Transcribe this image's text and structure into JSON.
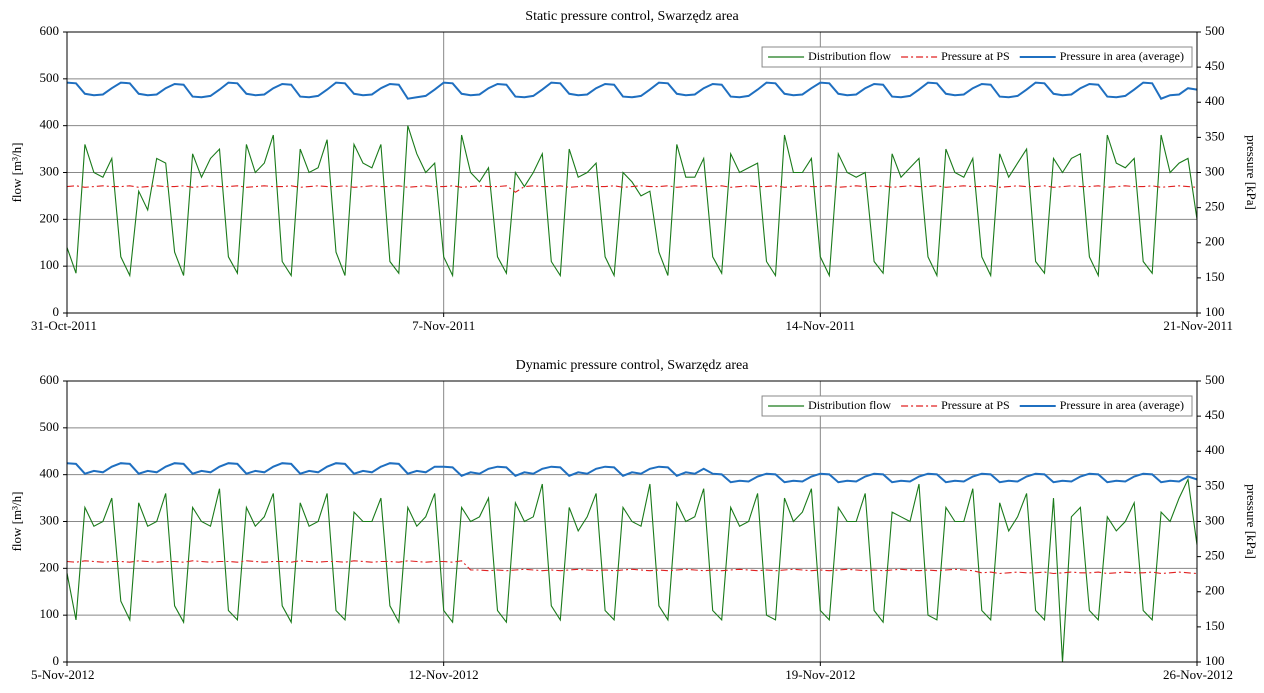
{
  "chart_data": [
    {
      "type": "line",
      "title": "Static pressure control, Swarzędz area",
      "y_label": "flow [m³/h]",
      "y2_label": "pressure [kPa]",
      "x": [
        0,
        4,
        8,
        12,
        16,
        20,
        24,
        28,
        32,
        36,
        40,
        44,
        48,
        52,
        56,
        60,
        64,
        68,
        72,
        76,
        80,
        84,
        88,
        92,
        96,
        100,
        104,
        108,
        112,
        116,
        120,
        124,
        128,
        132,
        136,
        140,
        144,
        148,
        152,
        156,
        160,
        164,
        168,
        172,
        176,
        180,
        184,
        188,
        192,
        196,
        200,
        204,
        208,
        212,
        216,
        220,
        224,
        228,
        232,
        236,
        240,
        244,
        248,
        252,
        256,
        260,
        264,
        268,
        272,
        276,
        280,
        284,
        288,
        292,
        296,
        300,
        304,
        308,
        312,
        316,
        320,
        324,
        328,
        332,
        336,
        340,
        344,
        348,
        352,
        356,
        360,
        364,
        368,
        372,
        376,
        380,
        384,
        388,
        392,
        396,
        400,
        404,
        408,
        412,
        416,
        420,
        424,
        428,
        432,
        436,
        440,
        444,
        448,
        452,
        456,
        460,
        464,
        468,
        472,
        476,
        480,
        484,
        488,
        492,
        496,
        500,
        504
      ],
      "xlim": [
        0,
        504
      ],
      "xticks": [
        {
          "value": 0,
          "label": "31-Oct-2011"
        },
        {
          "value": 168,
          "label": "7-Nov-2011"
        },
        {
          "value": 336,
          "label": "14-Nov-2011"
        },
        {
          "value": 504,
          "label": "21-Nov-2011"
        }
      ],
      "ylim": [
        0,
        600
      ],
      "yticks": [
        0,
        100,
        200,
        300,
        400,
        500,
        600
      ],
      "y2lim": [
        100,
        500
      ],
      "y2ticks": [
        100,
        150,
        200,
        250,
        300,
        350,
        400,
        450,
        500
      ],
      "grid": true,
      "legend": "upper right",
      "series": [
        {
          "name": "Distribution flow",
          "color": "#1a7a1a",
          "style": "solid",
          "values": [
            140,
            85,
            360,
            300,
            290,
            330,
            120,
            80,
            260,
            220,
            330,
            320,
            130,
            80,
            340,
            290,
            330,
            350,
            120,
            85,
            360,
            300,
            320,
            380,
            110,
            80,
            350,
            300,
            310,
            370,
            130,
            80,
            360,
            320,
            310,
            360,
            110,
            85,
            400,
            340,
            300,
            320,
            120,
            80,
            380,
            300,
            280,
            310,
            120,
            85,
            300,
            270,
            300,
            340,
            110,
            80,
            350,
            290,
            300,
            320,
            120,
            80,
            300,
            280,
            250,
            260,
            130,
            80,
            360,
            290,
            290,
            330,
            120,
            85,
            340,
            300,
            310,
            320,
            110,
            80,
            380,
            300,
            300,
            330,
            120,
            80,
            340,
            300,
            290,
            300,
            110,
            85,
            340,
            290,
            310,
            330,
            120,
            80,
            350,
            300,
            290,
            330,
            120,
            80,
            340,
            290,
            320,
            350,
            110,
            85,
            330,
            300,
            330,
            340,
            120,
            80,
            380,
            320,
            310,
            330,
            110,
            85,
            380,
            300,
            320,
            330,
            200
          ]
        },
        {
          "name": "Pressure at PS",
          "color": "#e02020",
          "style": "dash-dot",
          "axis": "y2",
          "values": [
            280,
            281,
            279,
            280,
            281,
            280,
            280,
            281,
            279,
            280,
            281,
            280,
            280,
            281,
            279,
            280,
            281,
            280,
            280,
            281,
            279,
            280,
            281,
            280,
            280,
            281,
            279,
            280,
            281,
            280,
            280,
            281,
            279,
            280,
            281,
            280,
            280,
            281,
            279,
            280,
            281,
            280,
            280,
            281,
            279,
            280,
            281,
            280,
            280,
            281,
            272,
            280,
            281,
            280,
            280,
            281,
            279,
            280,
            281,
            280,
            280,
            281,
            279,
            280,
            281,
            280,
            280,
            281,
            279,
            280,
            281,
            280,
            280,
            281,
            279,
            280,
            281,
            280,
            280,
            281,
            279,
            280,
            281,
            280,
            280,
            281,
            279,
            280,
            281,
            280,
            280,
            281,
            279,
            280,
            281,
            280,
            280,
            281,
            279,
            280,
            281,
            280,
            280,
            281,
            279,
            280,
            281,
            280,
            280,
            281,
            279,
            280,
            281,
            280,
            280,
            281,
            279,
            280,
            281,
            280,
            280,
            281,
            279,
            280,
            281,
            280,
            279
          ]
        },
        {
          "name": "Pressure in area (average)",
          "color": "#1f6fc0",
          "style": "solid",
          "axis": "y2",
          "values": [
            428,
            427,
            412,
            410,
            411,
            420,
            428,
            427,
            412,
            410,
            411,
            420,
            426,
            425,
            408,
            407,
            409,
            418,
            428,
            427,
            412,
            410,
            411,
            420,
            426,
            425,
            408,
            407,
            409,
            418,
            428,
            427,
            412,
            410,
            411,
            420,
            426,
            425,
            405,
            407,
            409,
            418,
            428,
            427,
            412,
            410,
            411,
            420,
            426,
            425,
            408,
            407,
            409,
            418,
            428,
            427,
            412,
            410,
            411,
            420,
            426,
            425,
            408,
            407,
            409,
            418,
            428,
            427,
            412,
            410,
            411,
            420,
            426,
            425,
            408,
            407,
            409,
            418,
            428,
            427,
            412,
            410,
            411,
            420,
            428,
            427,
            412,
            410,
            411,
            420,
            426,
            425,
            408,
            407,
            409,
            418,
            428,
            427,
            412,
            410,
            411,
            420,
            426,
            425,
            408,
            407,
            409,
            418,
            428,
            427,
            412,
            410,
            411,
            420,
            426,
            425,
            408,
            407,
            409,
            418,
            428,
            427,
            405,
            410,
            411,
            420,
            418
          ]
        }
      ]
    },
    {
      "type": "line",
      "title": "Dynamic pressure control, Swarzędz area",
      "y_label": "flow [m³/h]",
      "y2_label": "pressure [kPa]",
      "x": [
        0,
        4,
        8,
        12,
        16,
        20,
        24,
        28,
        32,
        36,
        40,
        44,
        48,
        52,
        56,
        60,
        64,
        68,
        72,
        76,
        80,
        84,
        88,
        92,
        96,
        100,
        104,
        108,
        112,
        116,
        120,
        124,
        128,
        132,
        136,
        140,
        144,
        148,
        152,
        156,
        160,
        164,
        168,
        172,
        176,
        180,
        184,
        188,
        192,
        196,
        200,
        204,
        208,
        212,
        216,
        220,
        224,
        228,
        232,
        236,
        240,
        244,
        248,
        252,
        256,
        260,
        264,
        268,
        272,
        276,
        280,
        284,
        288,
        292,
        296,
        300,
        304,
        308,
        312,
        316,
        320,
        324,
        328,
        332,
        336,
        340,
        344,
        348,
        352,
        356,
        360,
        364,
        368,
        372,
        376,
        380,
        384,
        388,
        392,
        396,
        400,
        404,
        408,
        412,
        416,
        420,
        424,
        428,
        432,
        436,
        440,
        444,
        448,
        452,
        456,
        460,
        464,
        468,
        472,
        476,
        480,
        484,
        488,
        492,
        496,
        500,
        504
      ],
      "xlim": [
        0,
        504
      ],
      "xticks": [
        {
          "value": 0,
          "label": "5-Nov-2012"
        },
        {
          "value": 168,
          "label": "12-Nov-2012"
        },
        {
          "value": 336,
          "label": "19-Nov-2012"
        },
        {
          "value": 504,
          "label": "26-Nov-2012"
        }
      ],
      "ylim": [
        0,
        600
      ],
      "yticks": [
        0,
        100,
        200,
        300,
        400,
        500,
        600
      ],
      "y2lim": [
        100,
        500
      ],
      "y2ticks": [
        100,
        150,
        200,
        250,
        300,
        350,
        400,
        450,
        500
      ],
      "grid": true,
      "legend": "upper right",
      "series": [
        {
          "name": "Distribution flow",
          "color": "#1a7a1a",
          "style": "solid",
          "values": [
            190,
            90,
            330,
            290,
            300,
            350,
            130,
            90,
            340,
            290,
            300,
            360,
            120,
            85,
            330,
            300,
            290,
            370,
            110,
            90,
            330,
            290,
            310,
            360,
            120,
            85,
            340,
            290,
            300,
            360,
            110,
            90,
            320,
            300,
            300,
            350,
            120,
            85,
            330,
            290,
            310,
            360,
            110,
            85,
            330,
            300,
            310,
            350,
            110,
            85,
            340,
            300,
            310,
            380,
            120,
            90,
            330,
            280,
            310,
            360,
            110,
            90,
            330,
            300,
            290,
            380,
            120,
            90,
            340,
            300,
            310,
            370,
            110,
            90,
            330,
            290,
            300,
            360,
            100,
            90,
            350,
            300,
            320,
            370,
            110,
            90,
            330,
            300,
            300,
            360,
            110,
            85,
            320,
            310,
            300,
            380,
            100,
            90,
            330,
            300,
            300,
            370,
            110,
            90,
            340,
            280,
            310,
            360,
            110,
            90,
            350,
            0,
            310,
            330,
            110,
            90,
            310,
            280,
            300,
            340,
            110,
            90,
            320,
            300,
            350,
            390,
            250
          ]
        },
        {
          "name": "Pressure at PS",
          "color": "#e02020",
          "style": "dash-dot",
          "axis": "y2",
          "values": [
            243,
            242,
            244,
            243,
            242,
            243,
            243,
            242,
            244,
            243,
            242,
            243,
            243,
            242,
            244,
            243,
            242,
            243,
            243,
            242,
            244,
            243,
            242,
            243,
            243,
            242,
            244,
            243,
            242,
            243,
            243,
            242,
            244,
            243,
            242,
            243,
            243,
            242,
            244,
            243,
            242,
            243,
            243,
            242,
            244,
            231,
            231,
            230,
            231,
            230,
            231,
            232,
            231,
            230,
            231,
            230,
            231,
            232,
            231,
            230,
            231,
            230,
            231,
            232,
            231,
            230,
            231,
            230,
            231,
            232,
            231,
            230,
            231,
            230,
            231,
            232,
            231,
            230,
            231,
            230,
            231,
            232,
            231,
            230,
            231,
            230,
            231,
            232,
            231,
            230,
            231,
            230,
            231,
            232,
            231,
            230,
            231,
            230,
            231,
            232,
            231,
            230,
            227,
            228,
            226,
            227,
            228,
            227,
            227,
            228,
            226,
            227,
            228,
            227,
            227,
            228,
            226,
            227,
            228,
            227,
            227,
            228,
            226,
            227,
            228,
            227,
            226
          ]
        },
        {
          "name": "Pressure in area (average)",
          "color": "#1f6fc0",
          "style": "solid",
          "axis": "y2",
          "values": [
            383,
            382,
            368,
            372,
            370,
            378,
            383,
            382,
            368,
            372,
            370,
            378,
            383,
            382,
            368,
            372,
            370,
            378,
            383,
            382,
            368,
            372,
            370,
            378,
            383,
            382,
            368,
            372,
            370,
            378,
            383,
            382,
            368,
            372,
            370,
            378,
            383,
            382,
            368,
            372,
            370,
            378,
            378,
            377,
            365,
            370,
            368,
            375,
            378,
            377,
            365,
            370,
            368,
            375,
            378,
            377,
            365,
            370,
            368,
            375,
            378,
            377,
            365,
            370,
            368,
            375,
            378,
            377,
            365,
            370,
            368,
            375,
            368,
            367,
            356,
            358,
            357,
            364,
            368,
            367,
            356,
            358,
            357,
            364,
            368,
            367,
            356,
            358,
            357,
            364,
            368,
            367,
            356,
            358,
            357,
            364,
            368,
            367,
            356,
            358,
            357,
            364,
            368,
            367,
            356,
            358,
            357,
            364,
            368,
            367,
            356,
            358,
            357,
            364,
            368,
            367,
            356,
            358,
            357,
            364,
            368,
            367,
            356,
            358,
            357,
            364,
            360
          ]
        }
      ]
    }
  ]
}
